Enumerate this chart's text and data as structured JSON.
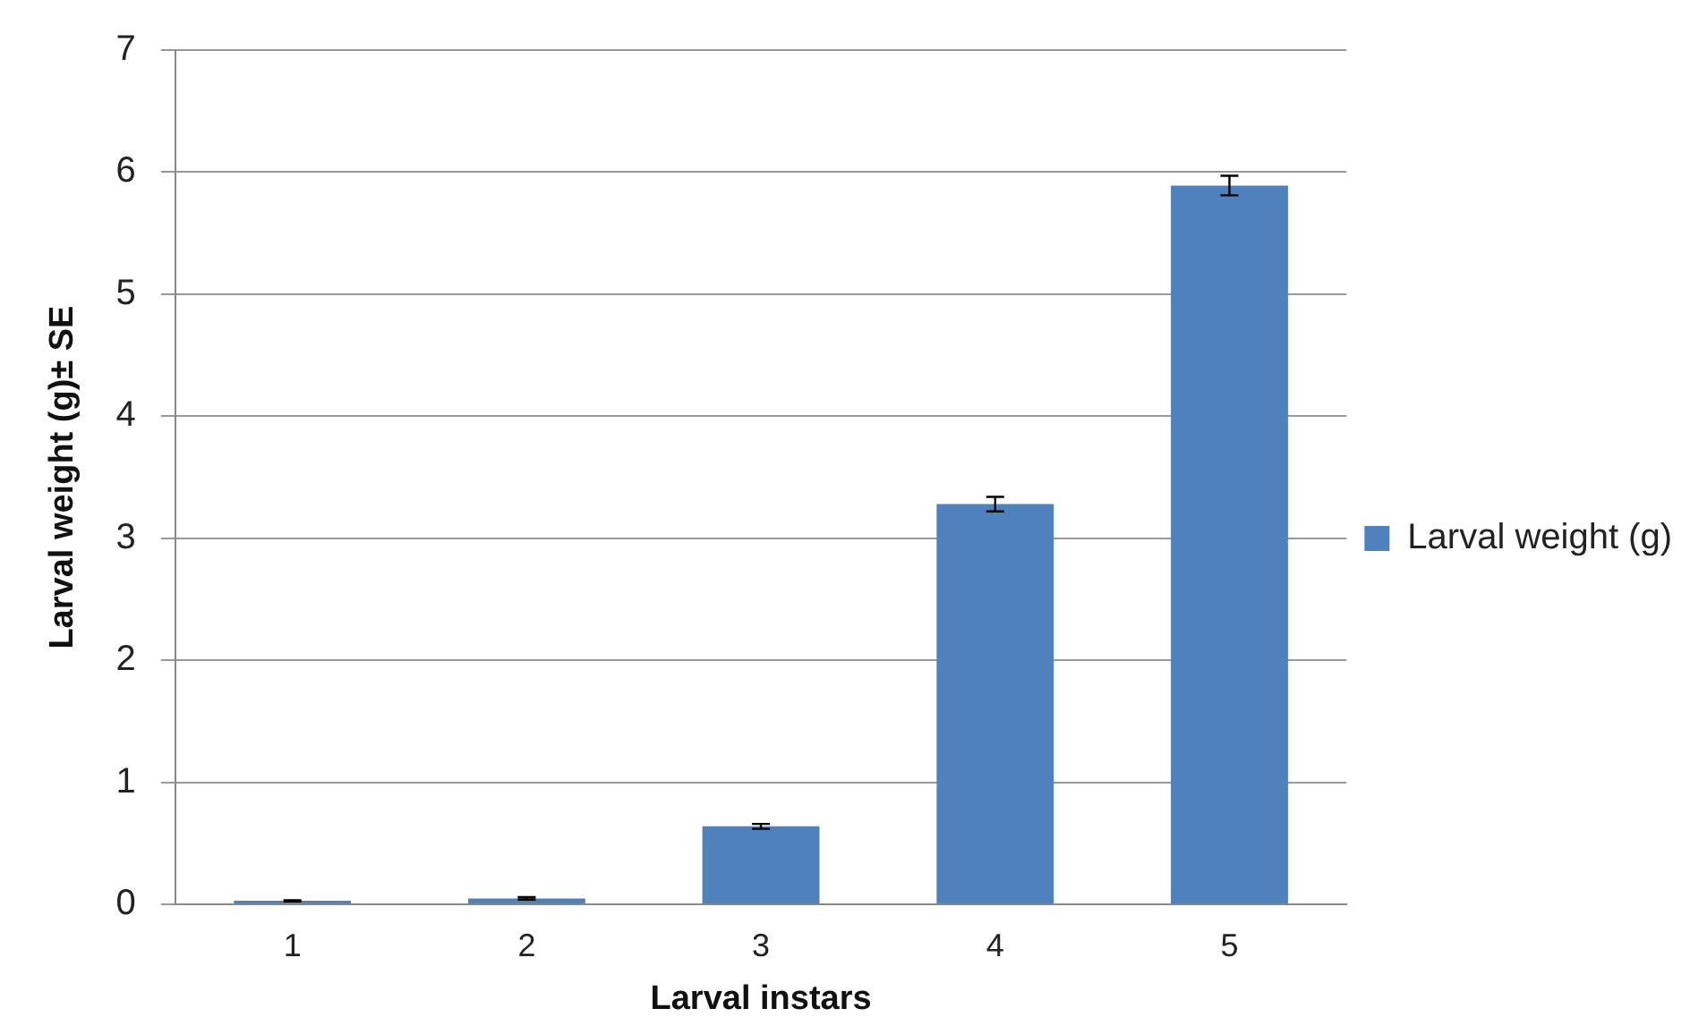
{
  "chart_data": {
    "type": "bar",
    "xlabel": "Larval instars",
    "ylabel": "Larval weight (g)± SE",
    "categories": [
      "1",
      "2",
      "3",
      "4",
      "5"
    ],
    "series": [
      {
        "name": "Larval weight (g)",
        "color": "#4f81bd",
        "values": [
          0.03,
          0.05,
          0.64,
          3.28,
          5.89
        ],
        "errors": [
          0.005,
          0.01,
          0.02,
          0.06,
          0.08
        ]
      }
    ],
    "ylim": [
      0,
      7
    ],
    "yticks": [
      0,
      1,
      2,
      3,
      4,
      5,
      6,
      7
    ],
    "grid": "y",
    "legend": "right"
  }
}
